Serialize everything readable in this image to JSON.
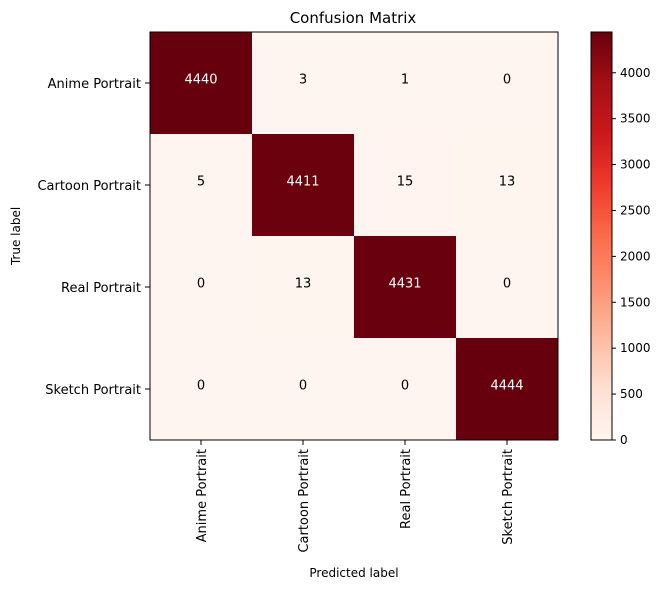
{
  "chart_data": {
    "type": "heatmap",
    "title": "Confusion Matrix",
    "xlabel": "Predicted label",
    "ylabel": "True label",
    "x_categories": [
      "Anime Portrait",
      "Cartoon Portrait",
      "Real Portrait",
      "Sketch Portrait"
    ],
    "y_categories": [
      "Anime Portrait",
      "Cartoon Portrait",
      "Real Portrait",
      "Sketch Portrait"
    ],
    "values": [
      [
        4440,
        3,
        1,
        0
      ],
      [
        5,
        4411,
        15,
        13
      ],
      [
        0,
        13,
        4431,
        0
      ],
      [
        0,
        0,
        0,
        4444
      ]
    ],
    "colormap": "Reds",
    "vmin": 0,
    "vmax": 4444,
    "colorbar_ticks": [
      0,
      500,
      1000,
      1500,
      2000,
      2500,
      3000,
      3500,
      4000
    ],
    "grid": false
  }
}
